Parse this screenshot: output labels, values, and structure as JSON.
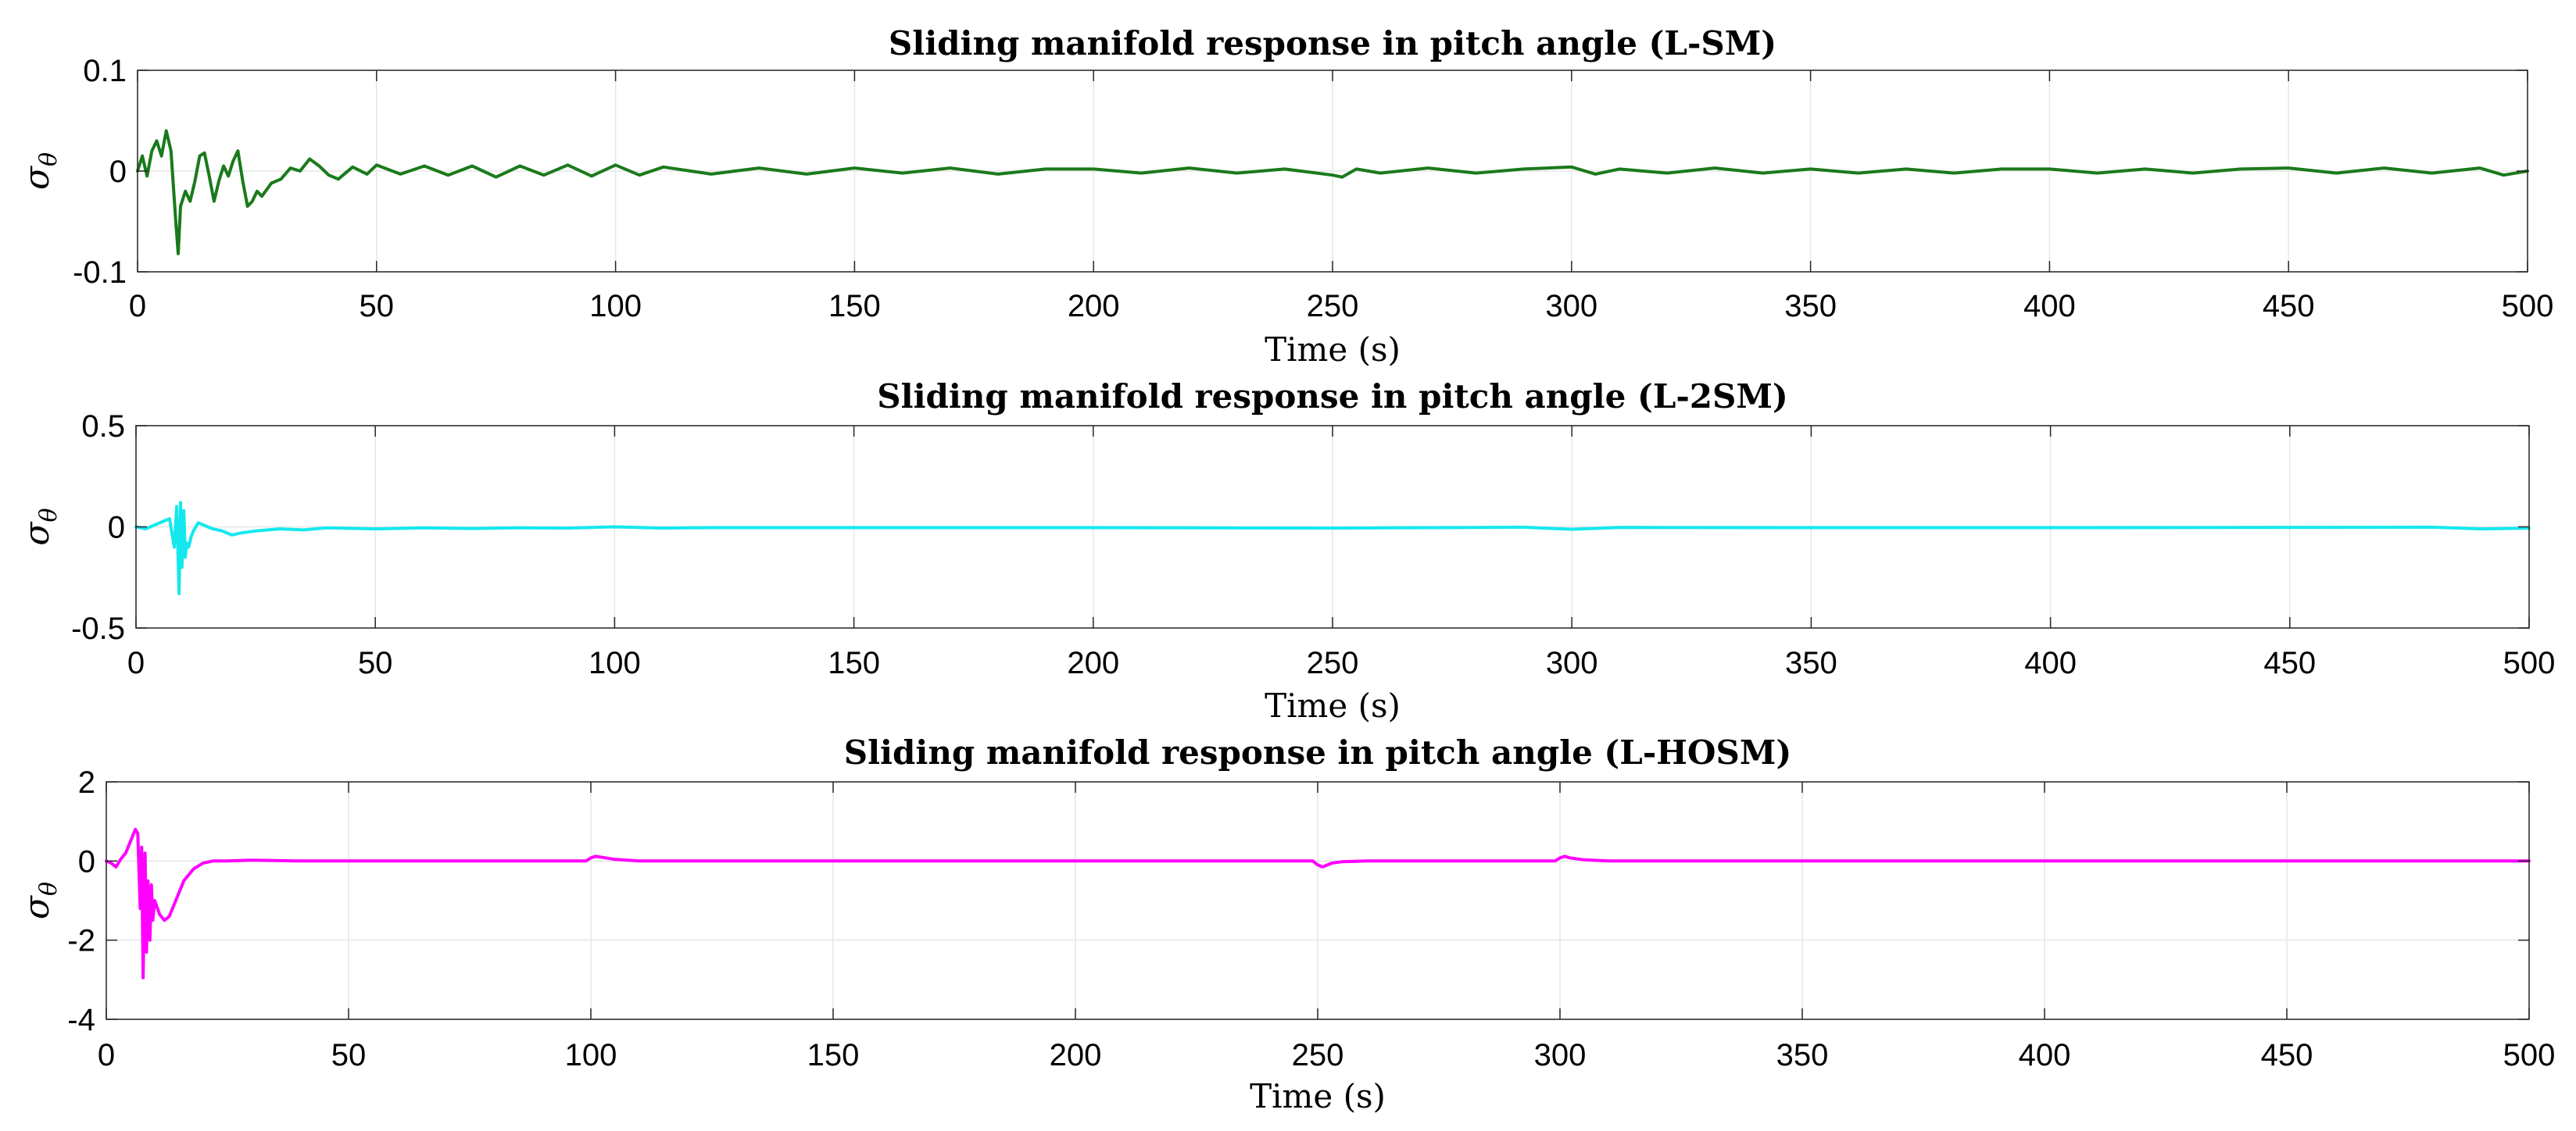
{
  "chart_data": [
    {
      "type": "line",
      "title": "Sliding manifold response in pitch angle (L-SM)",
      "xlabel": "Time (s)",
      "ylabel_symbol": "σ",
      "ylabel_subscript": "θ",
      "xlim": [
        0,
        500
      ],
      "ylim": [
        -0.1,
        0.1
      ],
      "xticks": [
        0,
        50,
        100,
        150,
        200,
        250,
        300,
        350,
        400,
        450,
        500
      ],
      "xtick_labels": [
        "0",
        "50",
        "100",
        "150",
        "200",
        "250",
        "300",
        "350",
        "400",
        "450",
        "500"
      ],
      "yticks": [
        -0.1,
        0,
        0.1
      ],
      "ytick_labels": [
        "-0.1",
        "0",
        "0.1"
      ],
      "grid": true,
      "color": "#1a7a1a",
      "series": [
        {
          "name": "L-SM",
          "x": [
            0,
            1,
            2,
            3,
            4,
            5,
            6,
            7,
            8,
            8.5,
            9,
            10,
            11,
            12,
            13,
            14,
            15,
            16,
            17,
            18,
            19,
            20,
            21,
            22,
            23,
            24,
            25,
            26,
            28,
            30,
            32,
            34,
            36,
            38,
            40,
            42,
            45,
            48,
            50,
            55,
            60,
            65,
            70,
            75,
            80,
            85,
            90,
            95,
            100,
            105,
            110,
            120,
            130,
            140,
            150,
            160,
            170,
            180,
            190,
            200,
            210,
            220,
            230,
            240,
            250,
            252,
            255,
            260,
            270,
            280,
            290,
            295,
            300,
            305,
            310,
            320,
            330,
            340,
            350,
            360,
            370,
            380,
            390,
            400,
            410,
            420,
            430,
            440,
            450,
            460,
            470,
            480,
            490,
            495,
            500
          ],
          "y": [
            0,
            0.015,
            -0.005,
            0.02,
            0.03,
            0.015,
            0.04,
            0.02,
            -0.05,
            -0.082,
            -0.035,
            -0.02,
            -0.03,
            -0.01,
            0.015,
            0.018,
            -0.005,
            -0.03,
            -0.01,
            0.005,
            -0.005,
            0.01,
            0.02,
            -0.01,
            -0.035,
            -0.03,
            -0.02,
            -0.025,
            -0.012,
            -0.008,
            0.003,
            0.0,
            0.012,
            0.005,
            -0.004,
            -0.008,
            0.004,
            -0.003,
            0.006,
            -0.003,
            0.005,
            -0.004,
            0.005,
            -0.006,
            0.005,
            -0.004,
            0.006,
            -0.005,
            0.006,
            -0.004,
            0.004,
            -0.003,
            0.003,
            -0.003,
            0.003,
            -0.002,
            0.003,
            -0.003,
            0.002,
            0.002,
            -0.002,
            0.003,
            -0.002,
            0.002,
            -0.004,
            -0.006,
            0.002,
            -0.002,
            0.003,
            -0.002,
            0.002,
            0.003,
            0.004,
            -0.003,
            0.002,
            -0.002,
            0.003,
            -0.002,
            0.002,
            -0.002,
            0.002,
            -0.002,
            0.002,
            0.002,
            -0.002,
            0.002,
            -0.002,
            0.002,
            0.003,
            -0.002,
            0.003,
            -0.002,
            0.003,
            -0.004,
            0.0
          ]
        }
      ]
    },
    {
      "type": "line",
      "title": "Sliding manifold response in pitch angle (L-2SM)",
      "xlabel": "Time (s)",
      "ylabel_symbol": "σ",
      "ylabel_subscript": "θ",
      "xlim": [
        0,
        500
      ],
      "ylim": [
        -0.5,
        0.5
      ],
      "xticks": [
        0,
        50,
        100,
        150,
        200,
        250,
        300,
        350,
        400,
        450,
        500
      ],
      "xtick_labels": [
        "0",
        "50",
        "100",
        "150",
        "200",
        "250",
        "300",
        "350",
        "400",
        "450",
        "500"
      ],
      "yticks": [
        -0.5,
        0,
        0.5
      ],
      "ytick_labels": [
        "-0.5",
        "0",
        "0.5"
      ],
      "grid": true,
      "color": "#14e8ee",
      "series": [
        {
          "name": "L-2SM",
          "x": [
            0,
            2,
            4,
            6,
            7,
            8,
            8.5,
            9,
            9.3,
            9.6,
            10,
            10.3,
            10.6,
            11,
            11.5,
            12,
            13,
            14,
            16,
            18,
            20,
            22,
            25,
            30,
            35,
            40,
            50,
            60,
            70,
            80,
            90,
            100,
            110,
            120,
            150,
            200,
            250,
            290,
            300,
            310,
            350,
            400,
            450,
            480,
            490,
            500
          ],
          "y": [
            0,
            -0.01,
            0.01,
            0.03,
            0.04,
            -0.1,
            0.1,
            -0.33,
            0.12,
            -0.2,
            0.08,
            -0.15,
            -0.08,
            -0.1,
            -0.05,
            -0.02,
            0.02,
            0.01,
            -0.01,
            -0.02,
            -0.04,
            -0.03,
            -0.02,
            -0.01,
            -0.015,
            -0.005,
            -0.01,
            -0.005,
            -0.008,
            -0.005,
            -0.006,
            0.0,
            -0.006,
            -0.004,
            -0.004,
            -0.004,
            -0.006,
            -0.002,
            -0.012,
            -0.003,
            -0.004,
            -0.004,
            -0.003,
            -0.002,
            -0.01,
            -0.006
          ]
        }
      ]
    },
    {
      "type": "line",
      "title": "Sliding manifold response in pitch angle (L-HOSM)",
      "xlabel": "Time (s)",
      "ylabel_symbol": "σ",
      "ylabel_subscript": "θ",
      "xlim": [
        0,
        500
      ],
      "ylim": [
        -4,
        2
      ],
      "xticks": [
        0,
        50,
        100,
        150,
        200,
        250,
        300,
        350,
        400,
        450,
        500
      ],
      "xtick_labels": [
        "0",
        "50",
        "100",
        "150",
        "200",
        "250",
        "300",
        "350",
        "400",
        "450",
        "500"
      ],
      "yticks": [
        -4,
        -2,
        0,
        2
      ],
      "ytick_labels": [
        "-4",
        "-2",
        "0",
        "2"
      ],
      "grid": true,
      "color": "#ff00ff",
      "series": [
        {
          "name": "L-HOSM",
          "x": [
            0,
            1,
            2,
            3,
            4,
            5,
            6,
            6.5,
            7,
            7.3,
            7.6,
            8,
            8.3,
            8.6,
            9,
            9.3,
            9.6,
            10,
            11,
            12,
            13,
            14,
            15,
            16,
            18,
            20,
            22,
            25,
            30,
            40,
            50,
            60,
            80,
            99,
            100,
            101,
            102,
            105,
            110,
            120,
            150,
            200,
            249,
            250,
            251,
            252,
            253,
            255,
            260,
            270,
            299,
            300,
            301,
            302,
            305,
            310,
            320,
            350,
            400,
            450,
            500
          ],
          "y": [
            0,
            -0.05,
            -0.15,
            0.05,
            0.2,
            0.5,
            0.8,
            0.7,
            -1.2,
            0.35,
            -2.95,
            0.2,
            -2.3,
            -0.5,
            -2.0,
            -0.6,
            -1.5,
            -1.0,
            -1.35,
            -1.5,
            -1.4,
            -1.1,
            -0.8,
            -0.5,
            -0.2,
            -0.05,
            0.0,
            0.0,
            0.02,
            0.0,
            0.0,
            0.0,
            0.0,
            0.0,
            0.08,
            0.12,
            0.1,
            0.04,
            0.0,
            0.0,
            0.0,
            0.0,
            0.0,
            -0.1,
            -0.15,
            -0.1,
            -0.05,
            -0.02,
            0.0,
            0.0,
            0.0,
            0.08,
            0.12,
            0.08,
            0.03,
            0.0,
            0.0,
            0.0,
            0.0,
            0.0,
            0.0
          ]
        }
      ]
    }
  ]
}
